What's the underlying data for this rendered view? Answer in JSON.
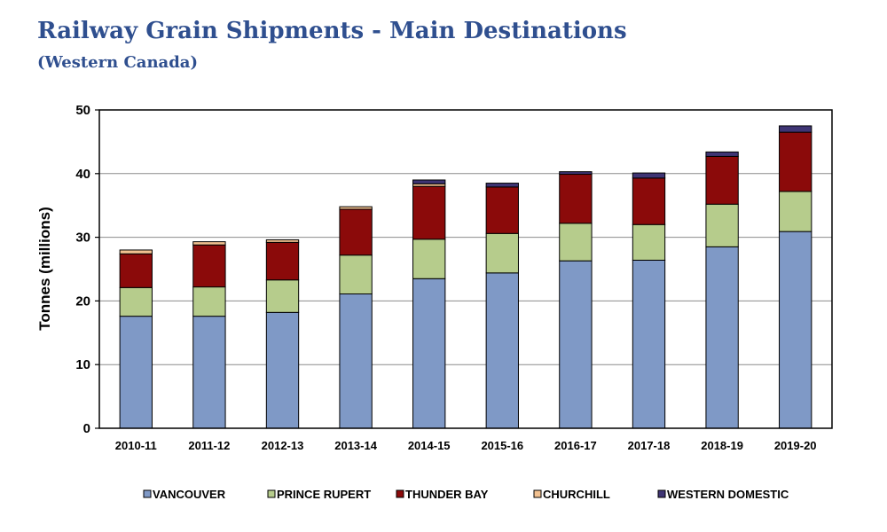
{
  "header": {
    "title": "Railway Grain Shipments - Main Destinations",
    "subtitle": "(Western Canada)"
  },
  "chart_data": {
    "type": "bar",
    "stacked": true,
    "title": "Railway Grain Shipments - Main Destinations",
    "subtitle": "(Western Canada)",
    "xlabel": "",
    "ylabel": "Tonnes (millions)",
    "ylim": [
      0,
      50
    ],
    "yticks": [
      0,
      10,
      20,
      30,
      40,
      50
    ],
    "grid": true,
    "legend_position": "bottom",
    "categories": [
      "2010-11",
      "2011-12",
      "2012-13",
      "2013-14",
      "2014-15",
      "2015-16",
      "2016-17",
      "2017-18",
      "2018-19",
      "2019-20"
    ],
    "series": [
      {
        "name": "VANCOUVER",
        "color": "#7f99c6",
        "values": [
          17.6,
          17.6,
          18.2,
          21.1,
          23.5,
          24.4,
          26.3,
          26.4,
          28.5,
          30.9
        ]
      },
      {
        "name": "PRINCE RUPERT",
        "color": "#b6cc8c",
        "values": [
          4.5,
          4.6,
          5.1,
          6.1,
          6.2,
          6.2,
          5.9,
          5.6,
          6.7,
          6.3
        ]
      },
      {
        "name": "THUNDER BAY",
        "color": "#8b0a0a",
        "values": [
          5.3,
          6.6,
          5.9,
          7.2,
          8.3,
          7.3,
          7.7,
          7.3,
          7.5,
          9.3
        ]
      },
      {
        "name": "CHURCHILL",
        "color": "#f2c190",
        "values": [
          0.6,
          0.5,
          0.4,
          0.4,
          0.4,
          0.0,
          0.0,
          0.0,
          0.0,
          0.0
        ]
      },
      {
        "name": "WESTERN DOMESTIC",
        "color": "#3f3574",
        "values": [
          0.0,
          0.0,
          0.0,
          0.0,
          0.6,
          0.6,
          0.4,
          0.8,
          0.7,
          1.0
        ]
      }
    ]
  }
}
